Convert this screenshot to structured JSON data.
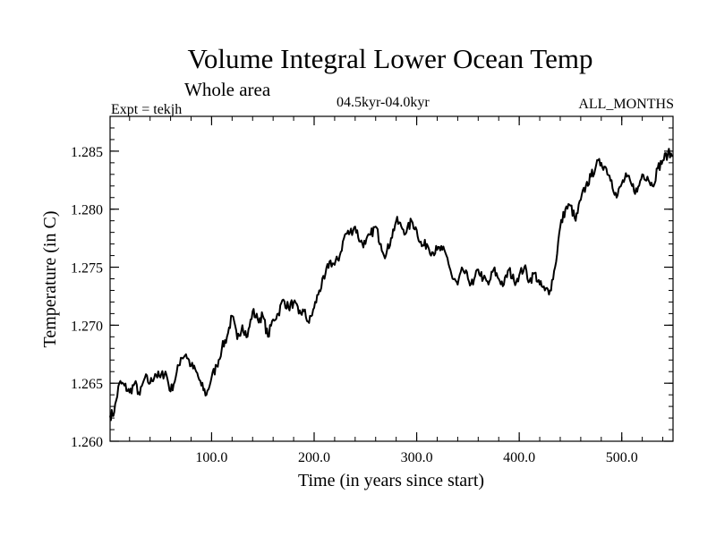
{
  "chart_data": {
    "type": "line",
    "title": "Volume Integral Lower Ocean Temp",
    "subtitle": "Whole area",
    "experiment_label": "Expt = tekjh",
    "period_label": "04.5kyr-04.0kyr",
    "season_label": "ALL_MONTHS",
    "xlabel": "Time (in years since start)",
    "ylabel": "Temperature (in C)",
    "xlim": [
      1,
      550
    ],
    "ylim": [
      1.26,
      1.288
    ],
    "xticks": [
      100,
      200,
      300,
      400,
      500
    ],
    "xtick_labels": [
      "100.0",
      "200.0",
      "300.0",
      "400.0",
      "500.0"
    ],
    "yticks": [
      1.26,
      1.265,
      1.27,
      1.275,
      1.28,
      1.285
    ],
    "ytick_labels": [
      "1.260",
      "1.265",
      "1.270",
      "1.275",
      "1.280",
      "1.285"
    ],
    "grid": false,
    "series": [
      {
        "name": "tekjh",
        "x": [
          1,
          5,
          10,
          15,
          20,
          25,
          30,
          35,
          40,
          45,
          50,
          55,
          60,
          65,
          70,
          75,
          80,
          85,
          90,
          95,
          100,
          105,
          110,
          115,
          120,
          125,
          130,
          135,
          140,
          145,
          150,
          155,
          160,
          165,
          170,
          175,
          180,
          185,
          190,
          195,
          200,
          205,
          210,
          215,
          220,
          225,
          230,
          235,
          240,
          245,
          250,
          255,
          260,
          265,
          270,
          275,
          280,
          285,
          290,
          295,
          300,
          305,
          310,
          315,
          320,
          325,
          330,
          335,
          340,
          345,
          350,
          355,
          360,
          365,
          370,
          375,
          380,
          385,
          390,
          395,
          400,
          405,
          410,
          415,
          420,
          425,
          430,
          435,
          440,
          445,
          450,
          455,
          460,
          465,
          470,
          475,
          480,
          485,
          490,
          495,
          500,
          505,
          510,
          515,
          520,
          525,
          530,
          535,
          540,
          545,
          550
        ],
        "values": [
          1.2622,
          1.2625,
          1.265,
          1.2648,
          1.2642,
          1.265,
          1.264,
          1.2655,
          1.265,
          1.2658,
          1.2655,
          1.266,
          1.2643,
          1.2655,
          1.2672,
          1.2675,
          1.2665,
          1.266,
          1.2648,
          1.264,
          1.2655,
          1.2665,
          1.268,
          1.269,
          1.2708,
          1.2688,
          1.27,
          1.269,
          1.2712,
          1.2705,
          1.2708,
          1.269,
          1.2705,
          1.271,
          1.2722,
          1.2715,
          1.272,
          1.271,
          1.2712,
          1.2702,
          1.2715,
          1.273,
          1.274,
          1.2755,
          1.2752,
          1.276,
          1.2778,
          1.278,
          1.2785,
          1.2772,
          1.277,
          1.2778,
          1.2785,
          1.277,
          1.276,
          1.2775,
          1.279,
          1.2785,
          1.278,
          1.279,
          1.2782,
          1.2768,
          1.277,
          1.2763,
          1.2765,
          1.2765,
          1.2758,
          1.274,
          1.2735,
          1.2748,
          1.274,
          1.2735,
          1.2748,
          1.274,
          1.2735,
          1.2748,
          1.274,
          1.2735,
          1.2748,
          1.2738,
          1.2743,
          1.275,
          1.2738,
          1.2745,
          1.2735,
          1.273,
          1.273,
          1.275,
          1.2785,
          1.28,
          1.2803,
          1.279,
          1.2808,
          1.282,
          1.2828,
          1.2838,
          1.284,
          1.2835,
          1.2825,
          1.281,
          1.2822,
          1.2828,
          1.282,
          1.2815,
          1.283,
          1.2828,
          1.282,
          1.2835,
          1.2842,
          1.2848,
          1.2846
        ]
      }
    ]
  }
}
